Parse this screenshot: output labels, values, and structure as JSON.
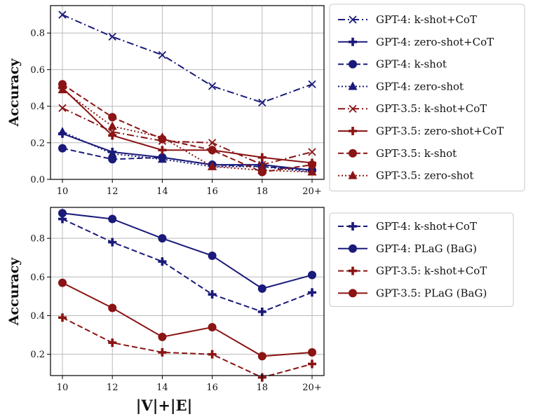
{
  "xlabel": "|V|+|E|",
  "colors": {
    "gpt4": "#1a1a7a",
    "gpt35": "#8b1414",
    "grid": "#b9b9b9",
    "axis": "#000000"
  },
  "chart_data": [
    {
      "type": "line",
      "categories": [
        "10",
        "12",
        "14",
        "16",
        "18",
        "20+"
      ],
      "ylabel": "Accuracy",
      "ylim": [
        0,
        0.95
      ],
      "yticks": [
        "0.0",
        "0.2",
        "0.4",
        "0.6",
        "0.8"
      ],
      "grid": true,
      "legend": "outside-right",
      "series": [
        {
          "name": "GPT-4: k-shot+CoT",
          "color": "#1a1a7a",
          "dash": "dashdot",
          "marker": "x",
          "values": [
            0.9,
            0.78,
            0.68,
            0.51,
            0.42,
            0.52
          ]
        },
        {
          "name": "GPT-4: zero-shot+CoT",
          "color": "#1a1a7a",
          "dash": "solid",
          "marker": "plus",
          "values": [
            0.25,
            0.15,
            0.12,
            0.08,
            0.08,
            0.05
          ]
        },
        {
          "name": "GPT-4: k-shot",
          "color": "#1a1a7a",
          "dash": "dashed",
          "marker": "circle",
          "values": [
            0.17,
            0.11,
            0.12,
            0.08,
            0.07,
            0.05
          ]
        },
        {
          "name": "GPT-4: zero-shot",
          "color": "#1a1a7a",
          "dash": "dotted",
          "marker": "triangle",
          "values": [
            0.26,
            0.14,
            0.11,
            0.07,
            0.07,
            0.04
          ]
        },
        {
          "name": "GPT-3.5: k-shot+CoT",
          "color": "#8b1414",
          "dash": "dashdot",
          "marker": "x",
          "values": [
            0.39,
            0.26,
            0.21,
            0.2,
            0.08,
            0.15
          ]
        },
        {
          "name": "GPT-3.5: zero-shot+CoT",
          "color": "#8b1414",
          "dash": "solid",
          "marker": "plus",
          "values": [
            0.5,
            0.24,
            0.16,
            0.16,
            0.12,
            0.09
          ]
        },
        {
          "name": "GPT-3.5: k-shot",
          "color": "#8b1414",
          "dash": "dashed",
          "marker": "circle",
          "values": [
            0.52,
            0.34,
            0.22,
            0.16,
            0.04,
            0.08
          ]
        },
        {
          "name": "GPT-3.5: zero-shot",
          "color": "#8b1414",
          "dash": "dotted",
          "marker": "triangle",
          "values": [
            0.49,
            0.29,
            0.23,
            0.07,
            0.05,
            0.04
          ]
        }
      ]
    },
    {
      "type": "line",
      "categories": [
        "10",
        "12",
        "14",
        "16",
        "18",
        "20+"
      ],
      "ylabel": "Accuracy",
      "ylim": [
        0.09,
        0.96
      ],
      "yticks": [
        "0.2",
        "0.4",
        "0.6",
        "0.8"
      ],
      "grid": true,
      "legend": "outside-right",
      "series": [
        {
          "name": "GPT-4: k-shot+CoT",
          "color": "#1a1a7a",
          "dash": "dashed",
          "marker": "plus",
          "values": [
            0.9,
            0.78,
            0.68,
            0.51,
            0.42,
            0.52
          ]
        },
        {
          "name": "GPT-4: PLaG (BaG)",
          "color": "#1a1a7a",
          "dash": "solid",
          "marker": "circle",
          "values": [
            0.93,
            0.9,
            0.8,
            0.71,
            0.54,
            0.61
          ]
        },
        {
          "name": "GPT-3.5: k-shot+CoT",
          "color": "#8b1414",
          "dash": "dashed",
          "marker": "plus",
          "values": [
            0.39,
            0.26,
            0.21,
            0.2,
            0.08,
            0.15
          ]
        },
        {
          "name": "GPT-3.5: PLaG (BaG)",
          "color": "#8b1414",
          "dash": "solid",
          "marker": "circle",
          "values": [
            0.57,
            0.44,
            0.29,
            0.34,
            0.19,
            0.21
          ]
        }
      ]
    }
  ]
}
